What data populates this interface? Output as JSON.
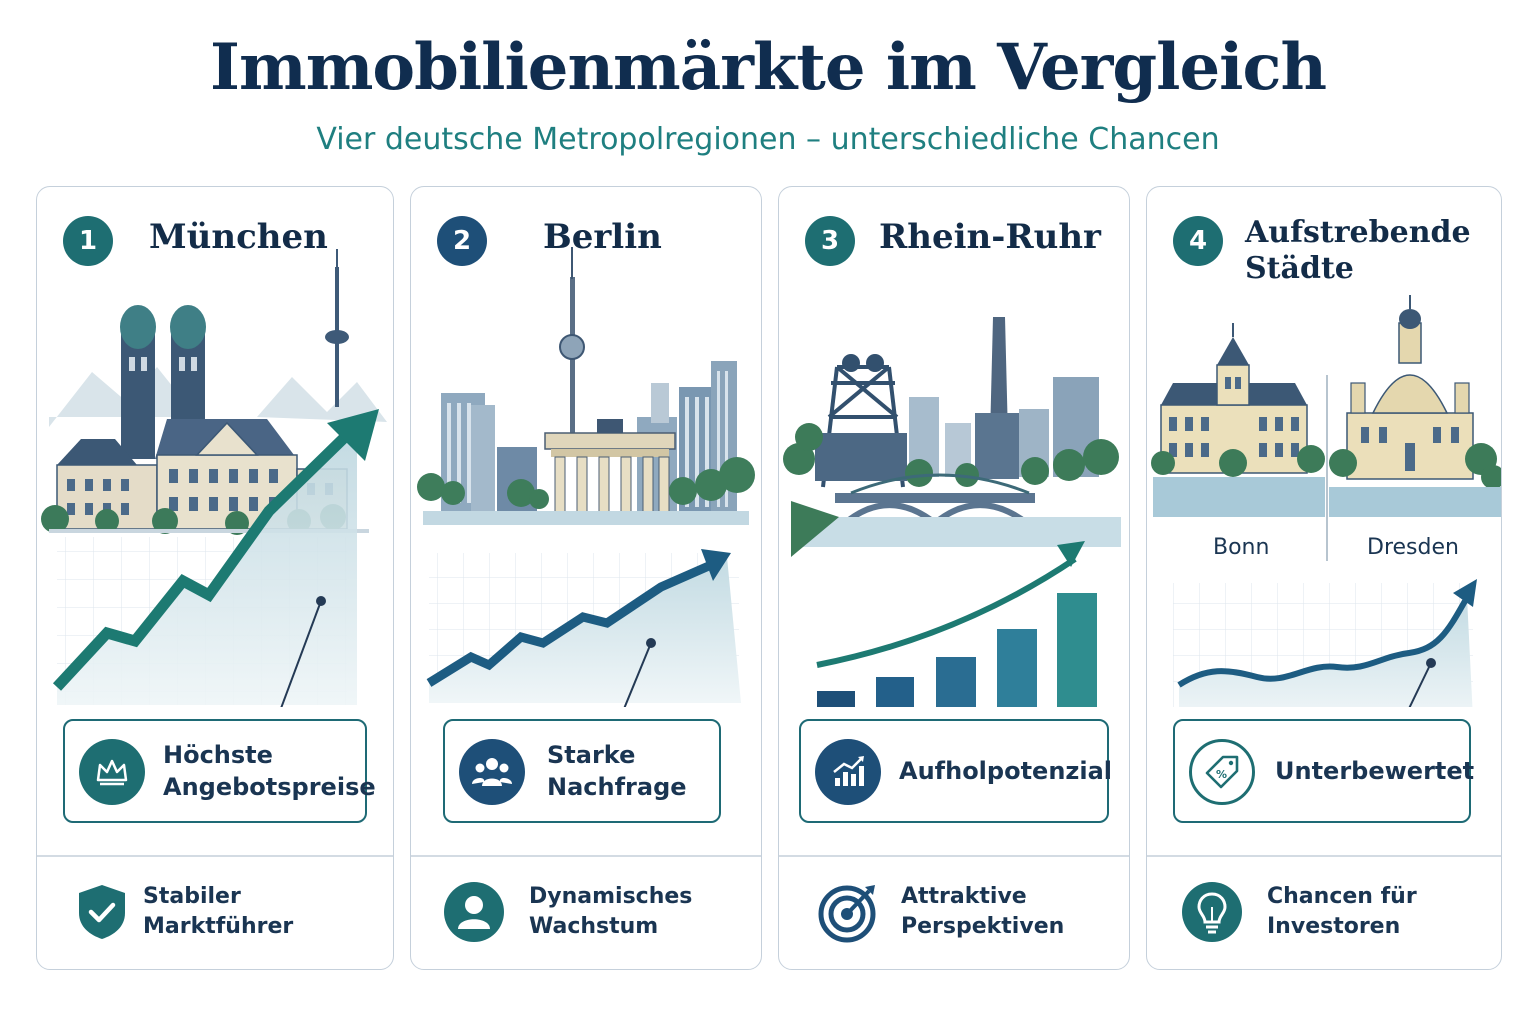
{
  "header": {
    "title": "Immobilienmärkte im Vergleich",
    "subtitle": "Vier deutsche Metropolregionen – unterschiedliche Chancen"
  },
  "colors": {
    "navy": "#102d4f",
    "teal": "#1f7f80",
    "dark_teal": "#1e6a75",
    "blue": "#1e5f84"
  },
  "cards": [
    {
      "number": "1",
      "city": "München",
      "feature": "Höchste Angebotspreise",
      "feature_icon": "crown-icon",
      "bottom": "Stabiler Marktführer",
      "bottom_icon": "shield-check-icon"
    },
    {
      "number": "2",
      "city": "Berlin",
      "feature": "Starke Nachfrage",
      "feature_icon": "people-group-icon",
      "bottom": "Dynamisches Wachstum",
      "bottom_icon": "person-icon"
    },
    {
      "number": "3",
      "city": "Rhein-Ruhr",
      "feature": "Aufholpotenzial",
      "feature_icon": "growth-chart-icon",
      "bottom": "Attraktive Perspektiven",
      "bottom_icon": "target-icon"
    },
    {
      "number": "4",
      "city": "Aufstrebende Städte",
      "city_labels": [
        "Bonn",
        "Dresden"
      ],
      "feature": "Unterbewertet",
      "feature_icon": "price-tag-icon",
      "bottom": "Chancen für Investoren",
      "bottom_icon": "lightbulb-icon"
    }
  ]
}
